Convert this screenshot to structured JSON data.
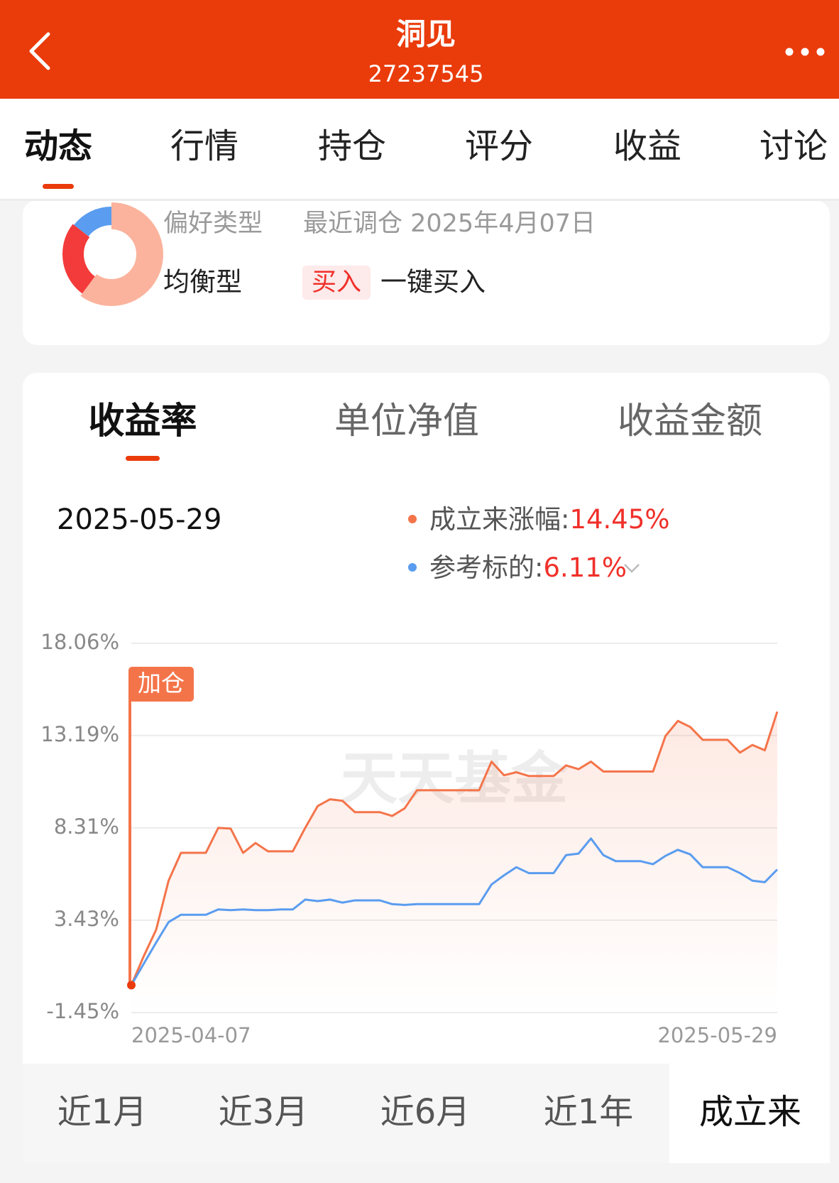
{
  "header": {
    "title": "洞见",
    "code": "27237545"
  },
  "tabs": [
    "动态",
    "行情",
    "持仓",
    "评分",
    "收益",
    "讨论"
  ],
  "profile": {
    "preference_label": "偏好类型",
    "preference": "均衡型",
    "rebalance": "最近调仓 2025年4月07日",
    "buy_badge": "买入",
    "buy_action": "一键买入"
  },
  "metric_tabs": [
    "收益率",
    "单位净值",
    "收益金额"
  ],
  "selected_date": "2025-05-29",
  "chart_data": {
    "type": "line",
    "annotation": "加仓",
    "watermark": "天天基金",
    "categories": [
      "2025-04-07",
      null,
      null,
      null,
      null,
      null,
      null,
      null,
      null,
      null,
      null,
      null,
      null,
      null,
      null,
      null,
      null,
      null,
      null,
      null,
      null,
      null,
      null,
      null,
      null,
      null,
      null,
      null,
      null,
      null,
      null,
      null,
      null,
      null,
      null,
      null,
      null,
      null,
      null,
      null,
      null,
      null,
      null,
      null,
      null,
      null,
      null,
      null,
      null,
      null,
      null,
      null,
      "2025-05-29"
    ],
    "ylim": [
      -1.45,
      18.06
    ],
    "yticks": [
      {
        "value": 18.06,
        "label": "18.06%"
      },
      {
        "value": 13.19,
        "label": "13.19%"
      },
      {
        "value": 8.31,
        "label": "8.31%"
      },
      {
        "value": 3.43,
        "label": "3.43%"
      },
      {
        "value": -1.45,
        "label": "-1.45%"
      }
    ],
    "grid": true,
    "series": [
      {
        "name": "成立来涨幅:",
        "latest_label": "14.45%",
        "color": "#f4744a",
        "values": [
          0,
          1.53,
          2.93,
          5.52,
          6.99,
          6.99,
          6.99,
          8.31,
          8.27,
          6.99,
          7.51,
          7.07,
          7.07,
          7.07,
          8.31,
          9.46,
          9.82,
          9.74,
          9.14,
          9.14,
          9.14,
          8.94,
          9.34,
          10.3,
          10.3,
          10.3,
          10.3,
          10.3,
          10.3,
          11.81,
          11.09,
          11.25,
          11.05,
          11.05,
          11.05,
          11.61,
          11.41,
          11.81,
          11.29,
          11.29,
          11.29,
          11.29,
          11.29,
          13.16,
          13.96,
          13.64,
          12.96,
          12.96,
          12.96,
          12.29,
          12.69,
          12.41,
          14.45
        ]
      },
      {
        "name": "参考标的:",
        "latest_label": "6.11%",
        "color": "#5a9cf0",
        "values": [
          0,
          1.13,
          2.25,
          3.33,
          3.72,
          3.72,
          3.72,
          4.0,
          3.96,
          4.0,
          3.96,
          3.96,
          4.0,
          4.0,
          4.52,
          4.44,
          4.52,
          4.36,
          4.48,
          4.48,
          4.48,
          4.28,
          4.24,
          4.28,
          4.28,
          4.28,
          4.28,
          4.28,
          4.28,
          5.32,
          5.8,
          6.23,
          5.92,
          5.92,
          5.92,
          6.87,
          6.95,
          7.75,
          6.87,
          6.55,
          6.55,
          6.55,
          6.39,
          6.83,
          7.15,
          6.91,
          6.23,
          6.23,
          6.23,
          5.92,
          5.52,
          5.44,
          6.11
        ]
      }
    ]
  },
  "periods": [
    "近1月",
    "近3月",
    "近6月",
    "近1年",
    "成立来"
  ]
}
